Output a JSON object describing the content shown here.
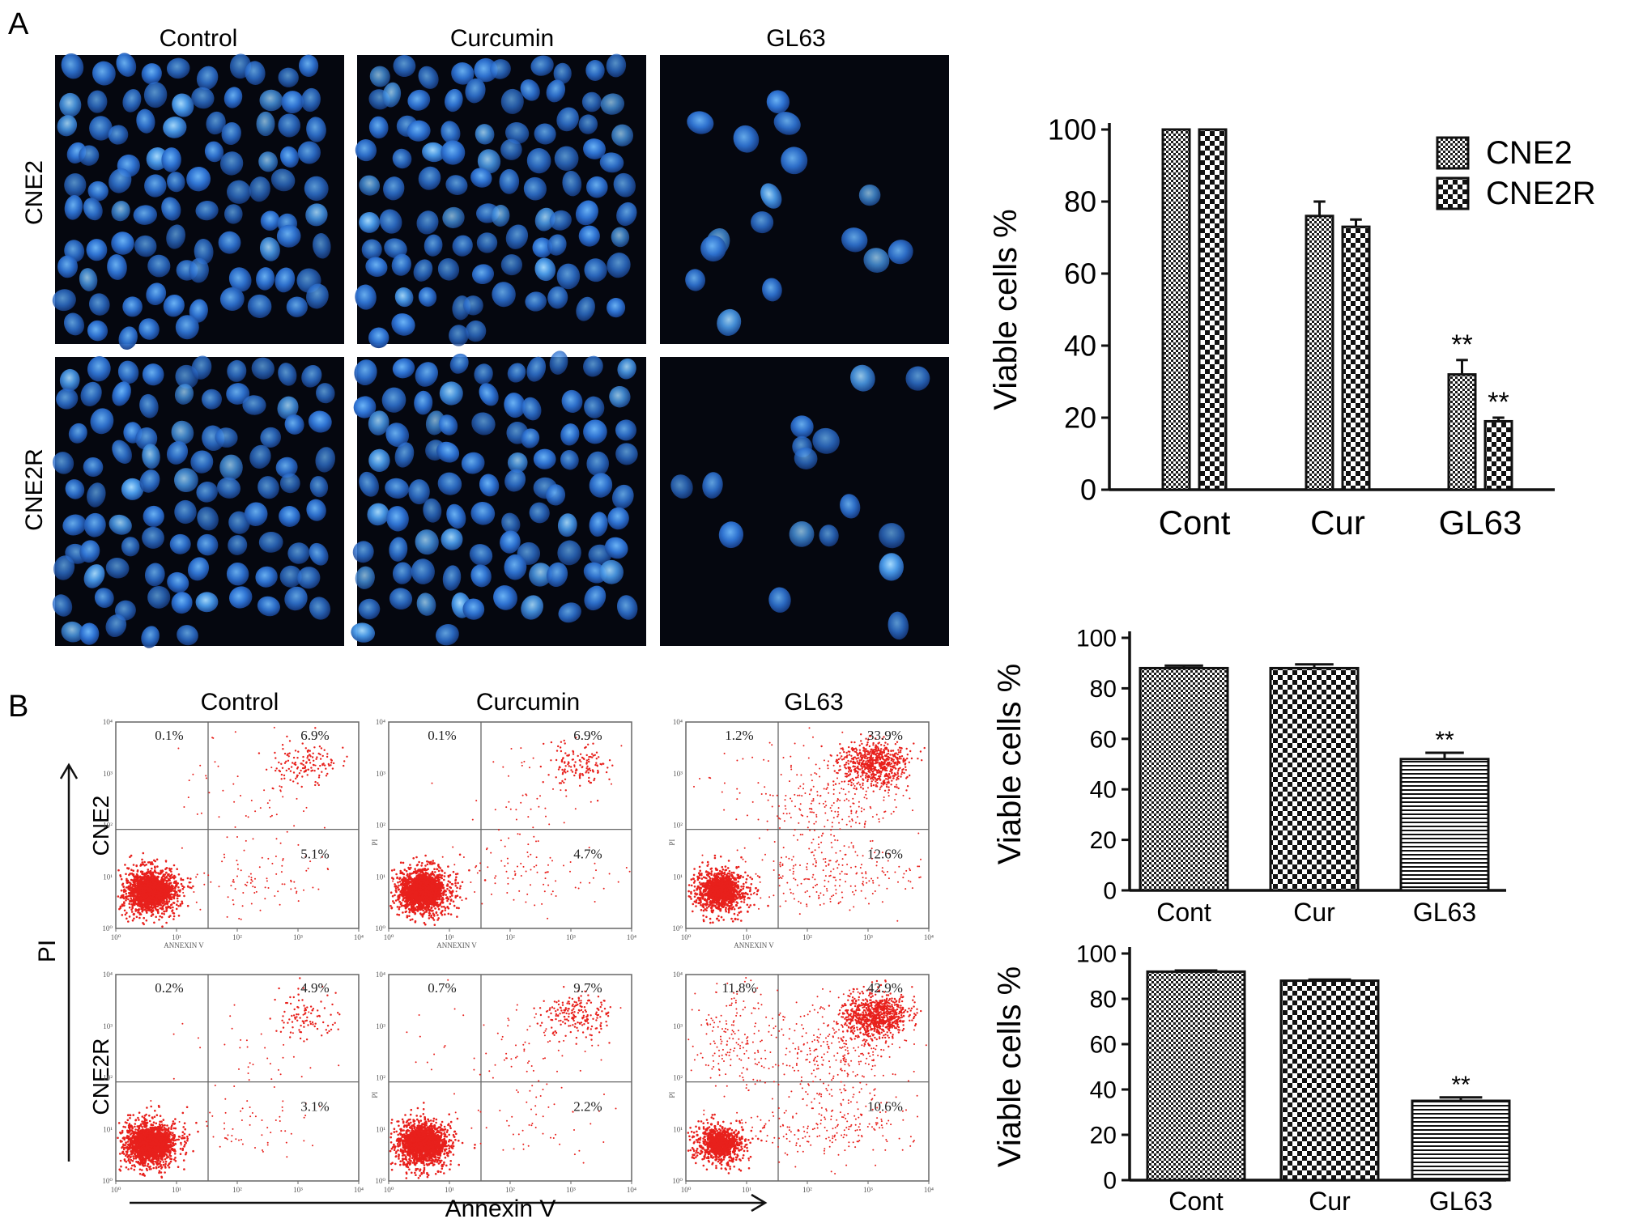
{
  "panel_a": {
    "letter": "A",
    "column_titles": [
      "Control",
      "Curcumin",
      "GL63"
    ],
    "row_labels": [
      "CNE2",
      "CNE2R"
    ],
    "micrographs": [
      {
        "row": "CNE2",
        "col": "Control",
        "cell_density": "high"
      },
      {
        "row": "CNE2",
        "col": "Curcumin",
        "cell_density": "high"
      },
      {
        "row": "CNE2",
        "col": "GL63",
        "cell_density": "low"
      },
      {
        "row": "CNE2R",
        "col": "Control",
        "cell_density": "high"
      },
      {
        "row": "CNE2R",
        "col": "Curcumin",
        "cell_density": "high"
      },
      {
        "row": "CNE2R",
        "col": "GL63",
        "cell_density": "low"
      }
    ],
    "micrograph_colors": {
      "background": "#05070f",
      "nucleus": "#2d6fd0",
      "nucleus_bright": "#5aa6f0"
    }
  },
  "panel_b": {
    "letter": "B",
    "column_titles": [
      "Control",
      "Curcumin",
      "GL63"
    ],
    "row_labels": [
      "CNE2",
      "CNE2R"
    ],
    "y_axis_label": "PI",
    "x_axis_label": "Annexin V",
    "plot_axis_text": "ANNEXIN V",
    "plot_pi_text": "PI",
    "tick_labels": [
      "10⁰",
      "10¹",
      "10²",
      "10³",
      "10⁴"
    ],
    "dot_color": "#e8201c",
    "plots": [
      {
        "row": "CNE2",
        "col": "Control",
        "q1": "0.1%",
        "q2": "6.9%",
        "q3": "5.1%"
      },
      {
        "row": "CNE2",
        "col": "Curcumin",
        "q1": "0.1%",
        "q2": "6.9%",
        "q3": "4.7%"
      },
      {
        "row": "CNE2",
        "col": "GL63",
        "q1": "1.2%",
        "q2": "33.9%",
        "q3": "12.6%"
      },
      {
        "row": "CNE2R",
        "col": "Control",
        "q1": "0.2%",
        "q2": "4.9%",
        "q3": "3.1%"
      },
      {
        "row": "CNE2R",
        "col": "Curcumin",
        "q1": "0.7%",
        "q2": "9.7%",
        "q3": "2.2%"
      },
      {
        "row": "CNE2R",
        "col": "GL63",
        "q1": "11.8%",
        "q2": "42.9%",
        "q3": "10.6%"
      }
    ]
  },
  "chart_data": [
    {
      "type": "bar",
      "categories": [
        "Cont",
        "Cur",
        "GL63"
      ],
      "ylabel": "Viable cells %",
      "ylim": [
        0,
        100
      ],
      "yticks": [
        0,
        20,
        40,
        60,
        80,
        100
      ],
      "legend_placement": "top-right",
      "series": [
        {
          "name": "CNE2",
          "values": [
            100,
            76,
            32
          ],
          "errors": [
            0,
            4,
            4
          ],
          "pattern": "fine-check"
        },
        {
          "name": "CNE2R",
          "values": [
            100,
            73,
            19
          ],
          "errors": [
            0,
            2,
            1
          ],
          "pattern": "coarse-check"
        }
      ],
      "annotations": [
        {
          "category": "GL63",
          "series": "CNE2",
          "text": "**"
        },
        {
          "category": "GL63",
          "series": "CNE2R",
          "text": "**"
        }
      ]
    },
    {
      "type": "bar",
      "categories": [
        "Cont",
        "Cur",
        "GL63"
      ],
      "ylabel": "Viable cells %",
      "ylim": [
        0,
        100
      ],
      "yticks": [
        0,
        20,
        40,
        60,
        80,
        100
      ],
      "values": [
        88,
        88,
        52
      ],
      "errors": [
        1,
        1.5,
        2.5
      ],
      "patterns": [
        "fine-check",
        "coarse-check",
        "horizontal-lines"
      ],
      "annotations": [
        {
          "category": "GL63",
          "text": "**"
        }
      ]
    },
    {
      "type": "bar",
      "categories": [
        "Cont",
        "Cur",
        "GL63"
      ],
      "ylabel": "Viable cells %",
      "ylim": [
        0,
        100
      ],
      "yticks": [
        0,
        20,
        40,
        60,
        80,
        100
      ],
      "values": [
        92,
        88,
        35
      ],
      "errors": [
        0.5,
        0.5,
        1.5
      ],
      "patterns": [
        "fine-check",
        "coarse-check",
        "horizontal-lines"
      ],
      "annotations": [
        {
          "category": "GL63",
          "text": "**"
        }
      ]
    }
  ]
}
